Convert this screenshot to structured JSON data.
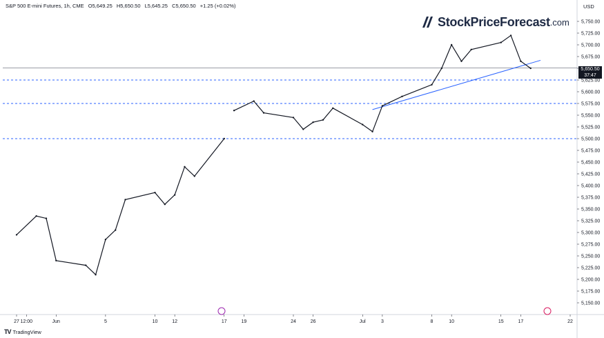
{
  "header": {
    "symbol": "S&P 500 E-mini Futures, 1h, CME",
    "open": "O5,649.25",
    "high": "H5,650.50",
    "low": "L5,645.25",
    "close": "C5,650.50",
    "change": "+1.25 (+0.02%)",
    "currency": "USD"
  },
  "watermark": {
    "brand": "StockPriceForecast",
    "suffix": ".com"
  },
  "footer": {
    "brand": "TradingView",
    "logo": "TV"
  },
  "price_badge": {
    "price": "5,650.50",
    "countdown": "37:47"
  },
  "markers": {
    "event_icon_1": "event-marker-icon",
    "event_icon_2": "dividend-marker-icon"
  },
  "colors": {
    "candles": "#131722",
    "support_lines": "#2962ff",
    "trendline": "#2962ff",
    "grid": "#f0f3fa",
    "badge": "#131722"
  },
  "chart_data": {
    "type": "line",
    "title": "S&P 500 E-mini Futures, 1h, CME",
    "xlabel": "",
    "ylabel": "",
    "ylim": [
      5125,
      5775
    ],
    "y_ticks": [
      5150,
      5175,
      5200,
      5225,
      5250,
      5275,
      5300,
      5325,
      5350,
      5375,
      5400,
      5425,
      5450,
      5475,
      5500,
      5525,
      5550,
      5575,
      5600,
      5625,
      5650,
      5675,
      5700,
      5725,
      5750
    ],
    "y_tick_labels": [
      "5,150.00",
      "5,175.00",
      "5,200.00",
      "5,225.00",
      "5,250.00",
      "5,275.00",
      "5,300.00",
      "5,325.00",
      "5,350.00",
      "5,375.00",
      "5,400.00",
      "5,425.00",
      "5,450.00",
      "5,475.00",
      "5,500.00",
      "5,525.00",
      "5,550.00",
      "5,575.00",
      "5,600.00",
      "5,625.00",
      "5,650.00",
      "5,675.00",
      "5,700.00",
      "5,725.00",
      "5,750.00"
    ],
    "x_tick_labels": [
      "27",
      "12:00",
      "Jun",
      "5",
      "10",
      "12",
      "17",
      "19",
      "24",
      "26",
      "Jul",
      "3",
      "8",
      "10",
      "15",
      "17",
      "22"
    ],
    "x": [
      "2024-05-27",
      "2024-05-29",
      "2024-05-30",
      "2024-05-31",
      "2024-06-03",
      "2024-06-04",
      "2024-06-05",
      "2024-06-06",
      "2024-06-07",
      "2024-06-10",
      "2024-06-11",
      "2024-06-12",
      "2024-06-13",
      "2024-06-14",
      "2024-06-17",
      "2024-06-18",
      "2024-06-20",
      "2024-06-21",
      "2024-06-24",
      "2024-06-25",
      "2024-06-26",
      "2024-06-27",
      "2024-06-28",
      "2024-07-01",
      "2024-07-02",
      "2024-07-03",
      "2024-07-05",
      "2024-07-08",
      "2024-07-09",
      "2024-07-10",
      "2024-07-11",
      "2024-07-12",
      "2024-07-15",
      "2024-07-16",
      "2024-07-17",
      "2024-07-18"
    ],
    "series": [
      {
        "values": [
          5295,
          5335,
          5330,
          5240,
          5230,
          5210,
          5285,
          5305,
          5370,
          5385,
          5360,
          5380,
          5440,
          5420,
          5500,
          5560,
          5580,
          5555,
          5545,
          5520,
          5535,
          5540,
          5565,
          5530,
          5515,
          5570,
          5590,
          5615,
          5650,
          5700,
          5665,
          5690,
          5705,
          5720,
          5665,
          5650
        ]
      }
    ],
    "support_levels": [
      5625,
      5575,
      5500
    ],
    "current_price": 5650.5,
    "trendline": {
      "from": {
        "x": "2024-07-02",
        "y": 5562
      },
      "to": {
        "x": "2024-07-19",
        "y": 5667
      }
    }
  }
}
